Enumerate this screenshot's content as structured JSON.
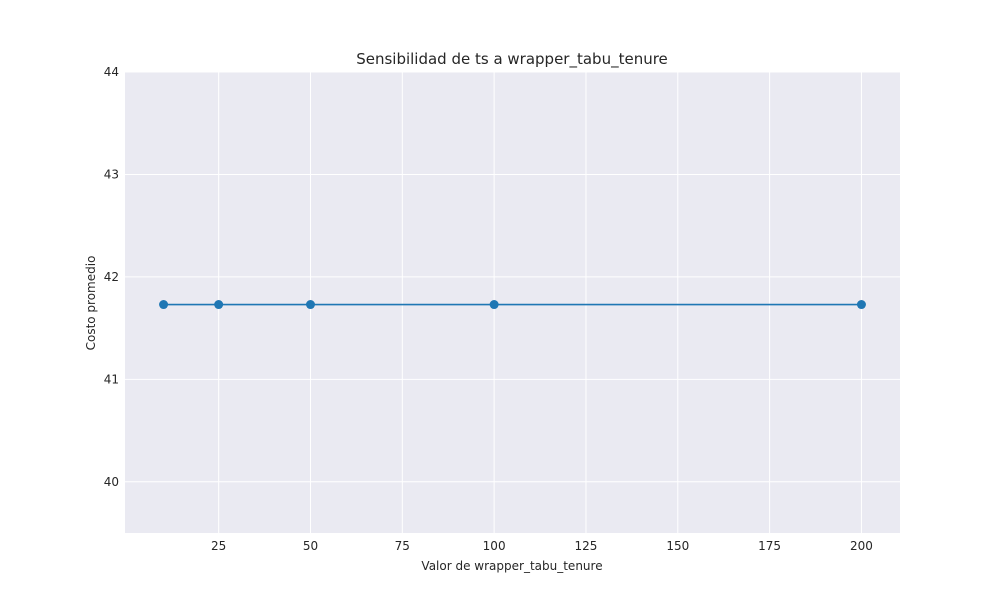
{
  "chart_data": {
    "type": "line",
    "title": "Sensibilidad de ts a wrapper_tabu_tenure",
    "xlabel": "Valor de wrapper_tabu_tenure",
    "ylabel": "Costo promedio",
    "x": [
      10,
      25,
      50,
      100,
      200
    ],
    "series": [
      {
        "values": [
          41.73,
          41.73,
          41.73,
          41.73,
          41.73
        ]
      }
    ],
    "xlim": [
      -0.5,
      210.5
    ],
    "ylim": [
      39.5,
      44.0
    ],
    "xticks": [
      25,
      50,
      75,
      100,
      125,
      150,
      175,
      200
    ],
    "xtick_labels": [
      "25",
      "50",
      "75",
      "100",
      "125",
      "150",
      "175",
      "200"
    ],
    "yticks": [
      40,
      41,
      42,
      43,
      44
    ],
    "ytick_labels": [
      "40",
      "41",
      "42",
      "43",
      "44"
    ],
    "grid": true,
    "colors": {
      "background": "#eaeaf2",
      "grid": "#ffffff",
      "line": "#1f77b4",
      "marker": "#1f77b4"
    }
  }
}
